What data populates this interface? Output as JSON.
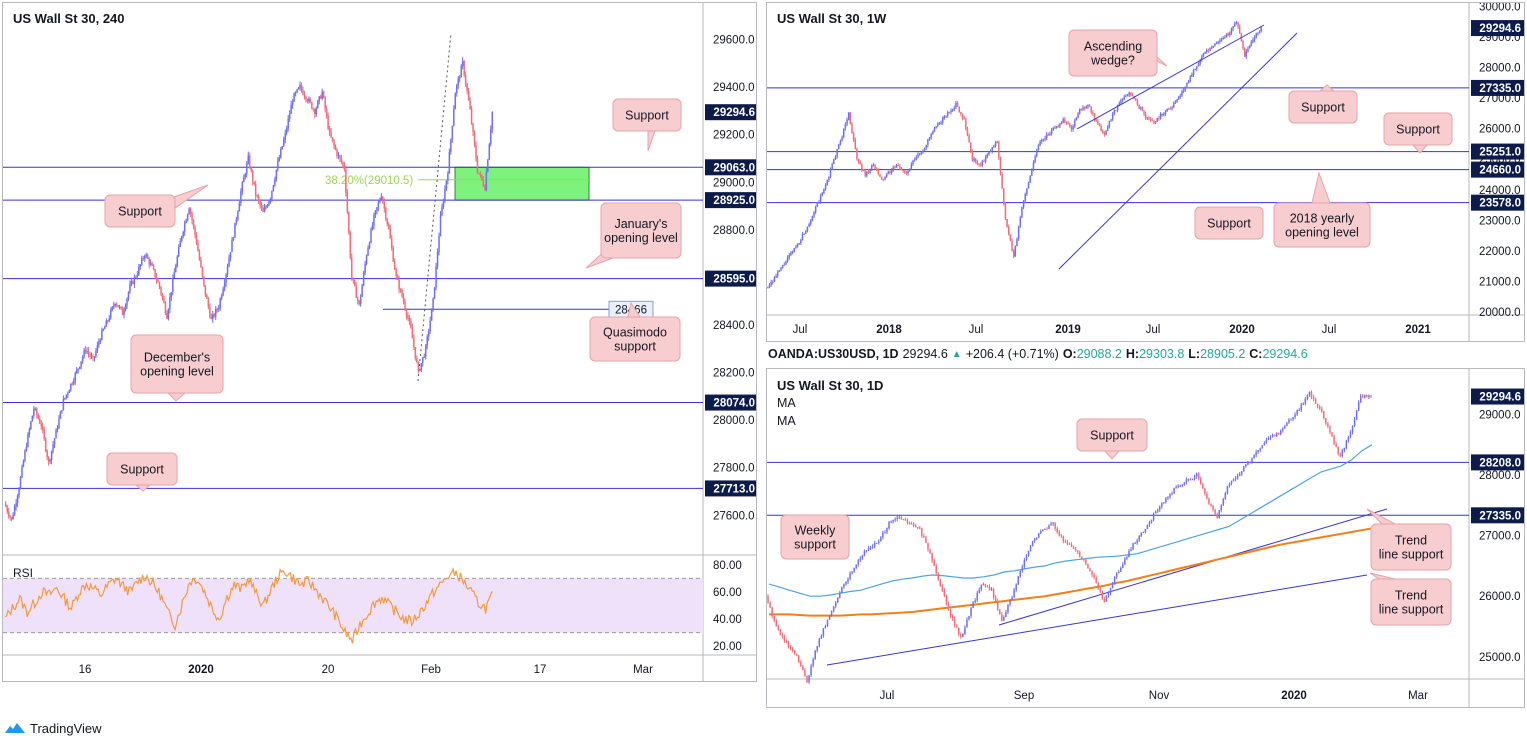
{
  "colors": {
    "up": "#6f6ff2",
    "down": "#f16b79",
    "level": "#3535d6",
    "label_bg": "#0d1b4b",
    "callout_bg": "#f8cdd0",
    "callout_border": "#e6a3a9",
    "zone": "#7df27d",
    "fib": "#9fd35a",
    "rsi": "#f59a3c",
    "rsi_band": "#f0e1fb",
    "ma_blue": "#4ea3e2",
    "ma_orange": "#f57f17"
  },
  "branding": {
    "logo": "tradingview-logo-icon",
    "name": "TradingView"
  },
  "chart_data": [
    {
      "id": "h4",
      "type": "candlestick",
      "title": "US Wall St 30, 240",
      "xlabel": "",
      "ylabel": "",
      "ylim": [
        27450,
        29720
      ],
      "x_ticks": [
        "16",
        "2020",
        "20",
        "Feb",
        "17",
        "Mar"
      ],
      "y_ticks": [
        "29600.0",
        "29400.0",
        "29200.0",
        "29000.0",
        "28800.0",
        "28400.0",
        "28200.0",
        "28000.0",
        "27800.0",
        "27600.0"
      ],
      "last_price": 29294.6,
      "levels": [
        {
          "value": 29063.0,
          "label": "29063.0"
        },
        {
          "value": 28925.0,
          "label": "28925.0"
        },
        {
          "value": 28595.0,
          "label": "28595.0"
        },
        {
          "value": 28074.0,
          "label": "28074.0"
        },
        {
          "value": 27713.0,
          "label": "27713.0"
        }
      ],
      "level_28466": {
        "value": 28466,
        "label": "28466"
      },
      "fib_label": "38.20%(29010.5)",
      "zone": {
        "top": 29063.0,
        "bottom": 28925.0
      },
      "path": [
        27650,
        27580,
        27720,
        27900,
        28050,
        27980,
        27820,
        27950,
        28080,
        28150,
        28220,
        28300,
        28250,
        28350,
        28420,
        28500,
        28450,
        28560,
        28620,
        28700,
        28640,
        28560,
        28440,
        28620,
        28780,
        28900,
        28750,
        28560,
        28420,
        28480,
        28620,
        28780,
        28960,
        29100,
        28950,
        28870,
        28940,
        29080,
        29200,
        29350,
        29400,
        29350,
        29300,
        29380,
        29200,
        29120,
        29060,
        28600,
        28480,
        28700,
        28850,
        28950,
        28800,
        28600,
        28500,
        28380,
        28200,
        28300,
        28500,
        28850,
        29050,
        29380,
        29500,
        29300,
        29050,
        28980,
        29294.6
      ],
      "annotations": [
        {
          "text": "Support"
        },
        {
          "text": "Support"
        },
        {
          "text": "January's opening level"
        },
        {
          "text": "Quasimodo support"
        },
        {
          "text": "December's opening level"
        },
        {
          "text": "Support"
        }
      ],
      "rsi": {
        "label": "RSI",
        "ylim": [
          15,
          85
        ],
        "y_ticks": [
          "80.00",
          "60.00",
          "40.00",
          "20.00"
        ],
        "band": [
          30,
          70
        ],
        "values": [
          40,
          48,
          55,
          45,
          52,
          60,
          58,
          63,
          55,
          48,
          60,
          66,
          62,
          58,
          65,
          70,
          64,
          60,
          68,
          72,
          66,
          58,
          45,
          36,
          52,
          68,
          70,
          60,
          48,
          40,
          56,
          65,
          62,
          70,
          58,
          50,
          62,
          72,
          75,
          70,
          65,
          68,
          62,
          55,
          48,
          40,
          30,
          24,
          36,
          44,
          52,
          56,
          50,
          45,
          40,
          38,
          44,
          52,
          60,
          66,
          72,
          74,
          68,
          60,
          52,
          48,
          58
        ]
      }
    },
    {
      "id": "weekly",
      "type": "candlestick",
      "title": "US Wall St 30, 1W",
      "xlabel": "",
      "ylabel": "",
      "ylim": [
        19900,
        30050
      ],
      "x_ticks": [
        "Jul",
        "2018",
        "Jul",
        "2019",
        "Jul",
        "2020",
        "Jul",
        "2021"
      ],
      "y_ticks": [
        "30000.0",
        "29000.0",
        "28000.0",
        "27000.0",
        "26000.0",
        "25000.0",
        "24000.0",
        "23000.0",
        "22000.0",
        "21000.0",
        "20000.0"
      ],
      "last_price": 29294.6,
      "levels": [
        {
          "value": 27335.0,
          "label": "27335.0"
        },
        {
          "value": 25251.0,
          "label": "25251.0"
        },
        {
          "value": 24660.0,
          "label": "24660.0"
        },
        {
          "value": 23578.0,
          "label": "23578.0"
        }
      ],
      "path": [
        20800,
        21100,
        21500,
        21900,
        22300,
        22800,
        23400,
        24000,
        24800,
        25600,
        26500,
        25000,
        24500,
        24800,
        24300,
        24600,
        24800,
        24500,
        25000,
        25300,
        25800,
        26200,
        26500,
        26800,
        26300,
        25000,
        24800,
        25200,
        25600,
        23000,
        21800,
        23400,
        24500,
        25500,
        25800,
        26000,
        26300,
        26000,
        26600,
        26800,
        26200,
        25800,
        26500,
        26900,
        27200,
        26800,
        26400,
        26200,
        26500,
        26700,
        27000,
        27500,
        28000,
        28400,
        28700,
        28900,
        29100,
        29500,
        28400,
        28900,
        29294.6
      ],
      "annotations": [
        {
          "text": "Ascending wedge?"
        },
        {
          "text": "Support"
        },
        {
          "text": "Support"
        },
        {
          "text": "Support"
        },
        {
          "text": "2018 yearly opening level"
        }
      ]
    },
    {
      "id": "daily",
      "type": "candlestick",
      "title": "US Wall St 30, 1D",
      "legend": [
        "MA",
        "MA"
      ],
      "xlabel": "",
      "ylabel": "",
      "ylim": [
        24700,
        29650
      ],
      "x_ticks": [
        "Jul",
        "Sep",
        "Nov",
        "2020",
        "Mar"
      ],
      "y_ticks": [
        "29000.0",
        "28000.0",
        "27000.0",
        "26000.0",
        "25000.0"
      ],
      "last_price": 29294.6,
      "levels": [
        {
          "value": 28208.0,
          "label": "28208.0"
        },
        {
          "value": 27335.0,
          "label": "27335.0"
        }
      ],
      "path": [
        26000,
        25500,
        25200,
        25000,
        24600,
        25200,
        25600,
        26000,
        26300,
        26600,
        26800,
        26900,
        27200,
        27300,
        27200,
        27100,
        26700,
        26200,
        25700,
        25300,
        25800,
        26200,
        26100,
        25600,
        26000,
        26500,
        26900,
        27100,
        27200,
        26900,
        26800,
        26600,
        26300,
        25900,
        26300,
        26600,
        26900,
        27100,
        27400,
        27600,
        27800,
        27900,
        28000,
        27600,
        27300,
        27800,
        28000,
        28200,
        28400,
        28600,
        28700,
        28900,
        29100,
        29350,
        29100,
        28700,
        28300,
        28700,
        29300,
        29294.6
      ],
      "ma_blue": [
        26200,
        26150,
        26100,
        26050,
        26000,
        26000,
        26020,
        26050,
        26080,
        26100,
        26150,
        26200,
        26250,
        26280,
        26300,
        26330,
        26350,
        26340,
        26320,
        26300,
        26300,
        26320,
        26350,
        26400,
        26420,
        26450,
        26480,
        26500,
        26550,
        26580,
        26600,
        26620,
        26640,
        26650,
        26660,
        26680,
        26700,
        26750,
        26800,
        26850,
        26900,
        26950,
        27000,
        27050,
        27100,
        27150,
        27250,
        27350,
        27450,
        27550,
        27650,
        27750,
        27850,
        27950,
        28050,
        28100,
        28150,
        28250,
        28400,
        28500
      ],
      "ma_orange": [
        25700,
        25700,
        25700,
        25690,
        25680,
        25680,
        25680,
        25680,
        25690,
        25700,
        25700,
        25710,
        25720,
        25730,
        25740,
        25760,
        25780,
        25800,
        25820,
        25840,
        25860,
        25880,
        25900,
        25920,
        25940,
        25960,
        25980,
        26000,
        26030,
        26060,
        26090,
        26120,
        26150,
        26180,
        26220,
        26250,
        26290,
        26330,
        26370,
        26410,
        26450,
        26490,
        26530,
        26570,
        26610,
        26650,
        26690,
        26730,
        26770,
        26810,
        26850,
        26880,
        26910,
        26940,
        26970,
        27000,
        27030,
        27060,
        27090,
        27120
      ],
      "annotations": [
        {
          "text": "Support"
        },
        {
          "text": "Weekly support"
        },
        {
          "text": "Trend line support"
        },
        {
          "text": "Trend line support"
        }
      ]
    }
  ],
  "ohlc_bar": {
    "symbol": "OANDA:US30USD, 1D",
    "price": "29294.6",
    "change": "+206.4 (+0.71%)",
    "o_label": "O:",
    "o": "29088.2",
    "h_label": "H:",
    "h": "29303.8",
    "l_label": "L:",
    "l": "28905.2",
    "c_label": "C:",
    "c": "29294.6"
  }
}
